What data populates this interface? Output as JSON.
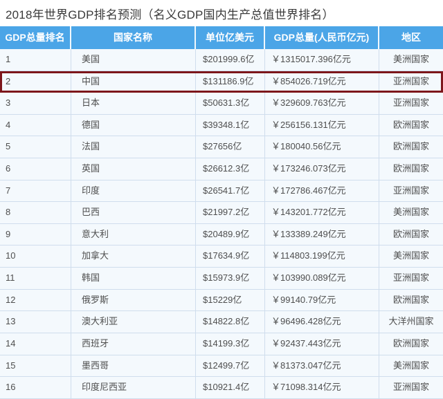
{
  "page": {
    "title": "2018年世界GDP排名预测（名义GDP国内生产总值世界排名）"
  },
  "chart_data": {
    "type": "table",
    "title": "2018年世界GDP排名预测（名义GDP国内生产总值世界排名）",
    "columns": [
      "GDP总量排名",
      "国家名称",
      "单位亿美元",
      "GDP总量(人民币亿元)",
      "地区"
    ],
    "rows": [
      {
        "rank": "1",
        "country": "美国",
        "usd": "$201999.6亿",
        "rmb": "￥1315017.396亿元",
        "region": "美洲国家"
      },
      {
        "rank": "2",
        "country": "中国",
        "usd": "$131186.9亿",
        "rmb": "￥854026.719亿元",
        "region": "亚洲国家"
      },
      {
        "rank": "3",
        "country": "日本",
        "usd": "$50631.3亿",
        "rmb": "￥329609.763亿元",
        "region": "亚洲国家"
      },
      {
        "rank": "4",
        "country": "德国",
        "usd": "$39348.1亿",
        "rmb": "￥256156.131亿元",
        "region": "欧洲国家"
      },
      {
        "rank": "5",
        "country": "法国",
        "usd": "$27656亿",
        "rmb": "￥180040.56亿元",
        "region": "欧洲国家"
      },
      {
        "rank": "6",
        "country": "英国",
        "usd": "$26612.3亿",
        "rmb": "￥173246.073亿元",
        "region": "欧洲国家"
      },
      {
        "rank": "7",
        "country": "印度",
        "usd": "$26541.7亿",
        "rmb": "￥172786.467亿元",
        "region": "亚洲国家"
      },
      {
        "rank": "8",
        "country": "巴西",
        "usd": "$21997.2亿",
        "rmb": "￥143201.772亿元",
        "region": "美洲国家"
      },
      {
        "rank": "9",
        "country": "意大利",
        "usd": "$20489.9亿",
        "rmb": "￥133389.249亿元",
        "region": "欧洲国家"
      },
      {
        "rank": "10",
        "country": "加拿大",
        "usd": "$17634.9亿",
        "rmb": "￥114803.199亿元",
        "region": "美洲国家"
      },
      {
        "rank": "11",
        "country": "韩国",
        "usd": "$15973.9亿",
        "rmb": "￥103990.089亿元",
        "region": "亚洲国家"
      },
      {
        "rank": "12",
        "country": "俄罗斯",
        "usd": "$15229亿",
        "rmb": "￥99140.79亿元",
        "region": "欧洲国家"
      },
      {
        "rank": "13",
        "country": "澳大利亚",
        "usd": "$14822.8亿",
        "rmb": "￥96496.428亿元",
        "region": "大洋州国家"
      },
      {
        "rank": "14",
        "country": "西班牙",
        "usd": "$14199.3亿",
        "rmb": "￥92437.443亿元",
        "region": "欧洲国家"
      },
      {
        "rank": "15",
        "country": "墨西哥",
        "usd": "$12499.7亿",
        "rmb": "￥81373.047亿元",
        "region": "美洲国家"
      },
      {
        "rank": "16",
        "country": "印度尼西亚",
        "usd": "$10921.4亿",
        "rmb": "￥71098.314亿元",
        "region": "亚洲国家"
      }
    ],
    "highlighted_rank": "2",
    "layout": {
      "legend": "none",
      "grid": "on",
      "header_bg": "#4ba5e7",
      "header_text": "#ffffff",
      "row_bg": "#f4f9fd",
      "grid_line": "#cfdded",
      "body_text": "#4e4e4e",
      "highlight_border": "#7d161b"
    }
  }
}
